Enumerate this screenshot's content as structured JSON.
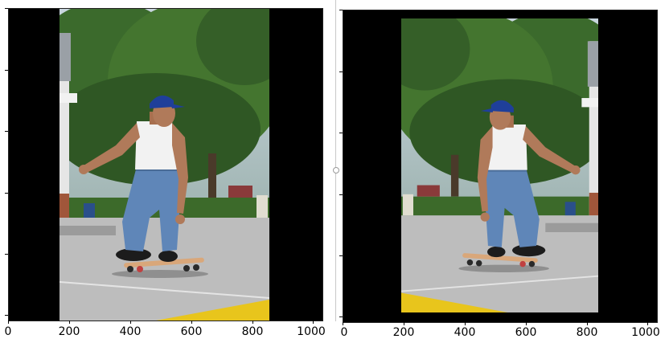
{
  "figure": {
    "panels": [
      {
        "name": "left",
        "x_ticks": [
          "0",
          "200",
          "400",
          "600",
          "800",
          "1000"
        ],
        "image": {
          "description_icon": "skateboarder-photo",
          "facing": "right"
        }
      },
      {
        "name": "right",
        "x_ticks": [
          "0",
          "200",
          "400",
          "600",
          "800",
          "1000"
        ],
        "image": {
          "description_icon": "skateboarder-photo",
          "facing": "left"
        }
      }
    ]
  },
  "colors": {
    "background_fill": "#000000",
    "cap": "#1f3f9a",
    "jeans": "#5f86b8",
    "tank_top": "#f2f2f2",
    "skin": "#b07a5a",
    "trees": "#3e6b2e",
    "pavement": "#bfbfbf",
    "curb": "#e8c51c"
  }
}
